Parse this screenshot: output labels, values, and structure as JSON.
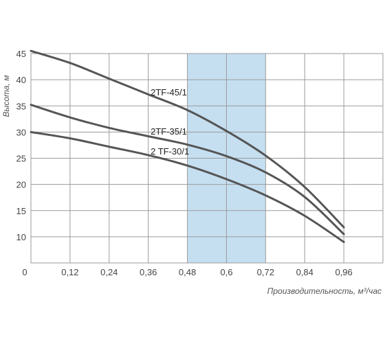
{
  "chart_data": {
    "type": "line",
    "xlabel": "Производительность, м³/час",
    "ylabel": "Высота, м",
    "xlim": [
      0,
      1.08
    ],
    "ylim": [
      5,
      45
    ],
    "x_ticks": [
      {
        "value": 0,
        "label": "0"
      },
      {
        "value": 0.12,
        "label": "0,12"
      },
      {
        "value": 0.24,
        "label": "0,24"
      },
      {
        "value": 0.36,
        "label": "0,36"
      },
      {
        "value": 0.48,
        "label": "0,48"
      },
      {
        "value": 0.6,
        "label": "0,6"
      },
      {
        "value": 0.72,
        "label": "0,72"
      },
      {
        "value": 0.84,
        "label": "0,84"
      },
      {
        "value": 0.96,
        "label": "0,96"
      }
    ],
    "y_ticks": [
      {
        "value": 10,
        "label": "10"
      },
      {
        "value": 15,
        "label": "15"
      },
      {
        "value": 20,
        "label": "20"
      },
      {
        "value": 25,
        "label": "25"
      },
      {
        "value": 30,
        "label": "30"
      },
      {
        "value": 35,
        "label": "35"
      },
      {
        "value": 40,
        "label": "40"
      },
      {
        "value": 45,
        "label": "45"
      }
    ],
    "grid": true,
    "highlight_range": {
      "x_from": 0.48,
      "x_to": 0.72,
      "color": "#c5dff1"
    },
    "series": [
      {
        "name": "2TF-45/1",
        "label_at": {
          "x": 0.42,
          "y": 37
        },
        "x": [
          0,
          0.12,
          0.24,
          0.36,
          0.48,
          0.6,
          0.72,
          0.84,
          0.96
        ],
        "y": [
          45.5,
          43.2,
          40.2,
          37.2,
          34.2,
          30.2,
          25.5,
          19.5,
          11.8
        ]
      },
      {
        "name": "2TF-35/1",
        "label_at": {
          "x": 0.42,
          "y": 29.5
        },
        "x": [
          0,
          0.12,
          0.24,
          0.36,
          0.48,
          0.6,
          0.72,
          0.84,
          0.96
        ],
        "y": [
          35.2,
          32.8,
          30.8,
          29.2,
          27.6,
          25.4,
          22.3,
          17.6,
          10.5
        ]
      },
      {
        "name": "2 TF-30/1",
        "label_at": {
          "x": 0.42,
          "y": 25.7
        },
        "x": [
          0,
          0.12,
          0.24,
          0.36,
          0.48,
          0.6,
          0.72,
          0.84,
          0.96
        ],
        "y": [
          30.0,
          28.8,
          27.2,
          25.6,
          23.6,
          21.0,
          17.9,
          14.0,
          9.0
        ]
      }
    ]
  }
}
